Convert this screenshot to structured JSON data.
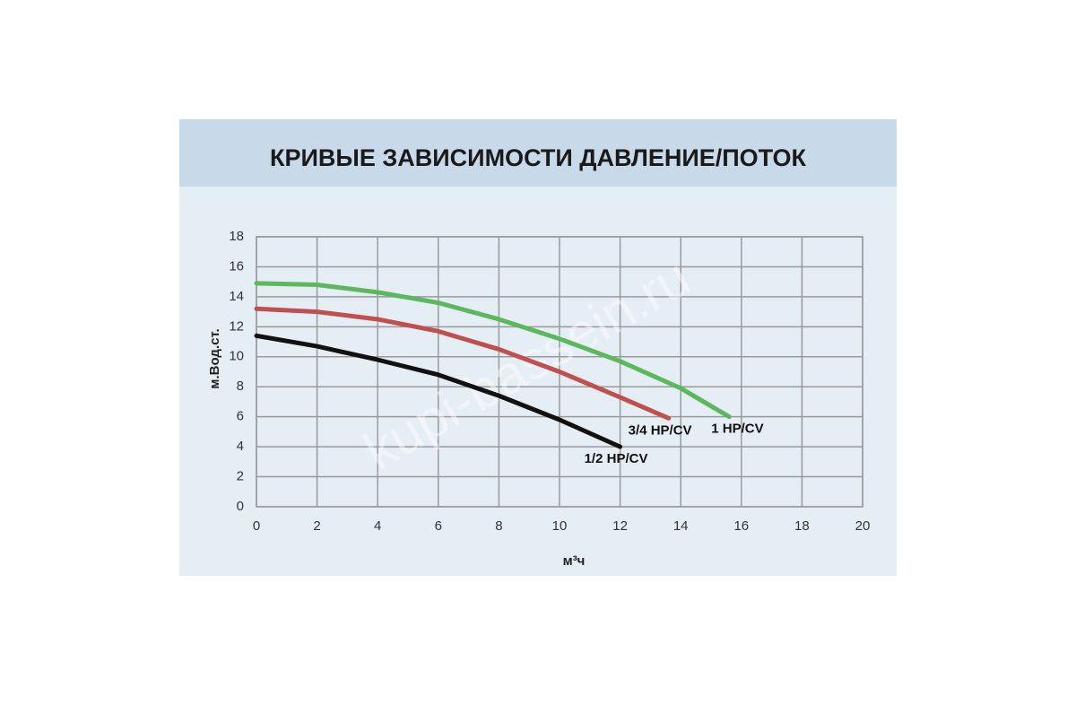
{
  "chart_data": {
    "type": "line",
    "title": "КРИВЫЕ ЗАВИСИМОСТИ ДАВЛЕНИЕ/ПОТОК",
    "x_label": "м³ч",
    "y_label": "м.Вод.ст.",
    "watermark": "kupi-bassein.ru",
    "xlim": [
      0,
      20
    ],
    "xticks": [
      0,
      2,
      4,
      6,
      8,
      10,
      12,
      14,
      16,
      18,
      20
    ],
    "ylim": [
      0,
      18
    ],
    "yticks": [
      0,
      2,
      4,
      6,
      8,
      10,
      12,
      14,
      16,
      18
    ],
    "grid": true,
    "series": [
      {
        "name": "1 HP/CV",
        "color": "#5cb85c",
        "x": [
          0,
          2,
          4,
          6,
          8,
          10,
          12,
          14,
          15.6
        ],
        "values": [
          14.9,
          14.8,
          14.3,
          13.6,
          12.5,
          11.2,
          9.7,
          7.9,
          6.0
        ]
      },
      {
        "name": "3/4 HP/CV",
        "color": "#c0504d",
        "x": [
          0,
          2,
          4,
          6,
          8,
          10,
          12,
          13.6
        ],
        "values": [
          13.2,
          13.0,
          12.5,
          11.7,
          10.5,
          9.0,
          7.3,
          5.9
        ]
      },
      {
        "name": "1/2 HP/CV",
        "color": "#111111",
        "x": [
          0,
          2,
          4,
          6,
          8,
          10,
          12
        ],
        "values": [
          11.4,
          10.7,
          9.8,
          8.8,
          7.4,
          5.8,
          4.0
        ]
      }
    ]
  }
}
